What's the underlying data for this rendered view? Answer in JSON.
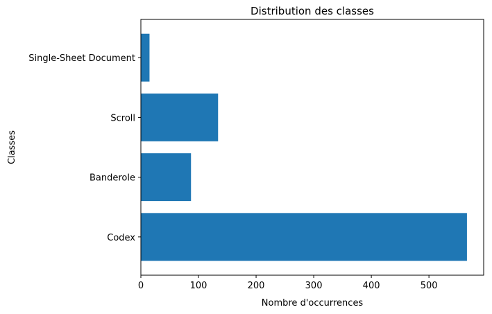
{
  "chart_data": {
    "type": "bar",
    "orientation": "horizontal",
    "title": "Distribution des classes",
    "xlabel": "Nombre d'occurrences",
    "ylabel": "Classes",
    "categories": [
      "Codex",
      "Banderole",
      "Scroll",
      "Single-Sheet Document"
    ],
    "values": [
      566,
      87,
      134,
      15
    ],
    "xlim": [
      0,
      595
    ],
    "xticks": [
      0,
      100,
      200,
      300,
      400,
      500
    ],
    "bar_color": "#1f77b4",
    "grid": false,
    "legend": "none"
  }
}
